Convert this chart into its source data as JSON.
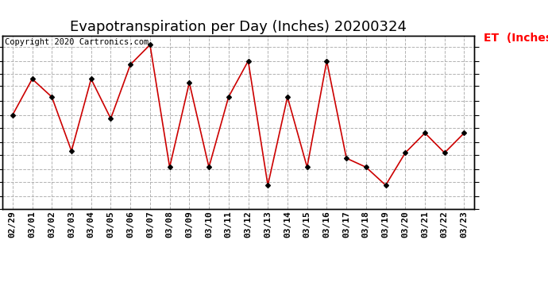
{
  "title": "Evapotranspiration per Day (Inches) 20200324",
  "copyright": "Copyright 2020 Cartronics.com",
  "legend_label": "ET  (Inches)",
  "dates": [
    "02/29",
    "03/01",
    "03/02",
    "03/03",
    "03/04",
    "03/05",
    "03/06",
    "03/07",
    "03/08",
    "03/09",
    "03/10",
    "03/11",
    "03/12",
    "03/13",
    "03/14",
    "03/15",
    "03/16",
    "03/17",
    "03/18",
    "03/19",
    "03/20",
    "03/21",
    "03/22",
    "03/23"
  ],
  "values": [
    0.052,
    0.072,
    0.062,
    0.032,
    0.072,
    0.05,
    0.08,
    0.091,
    0.023,
    0.07,
    0.023,
    0.062,
    0.082,
    0.013,
    0.062,
    0.023,
    0.082,
    0.028,
    0.023,
    0.013,
    0.031,
    0.042,
    0.031,
    0.042
  ],
  "line_color": "#cc0000",
  "marker": "D",
  "marker_color": "black",
  "marker_size": 3,
  "ylim": [
    0.0,
    0.096
  ],
  "yticks": [
    0.0,
    0.007,
    0.015,
    0.022,
    0.03,
    0.037,
    0.045,
    0.052,
    0.06,
    0.068,
    0.075,
    0.082,
    0.09
  ],
  "background_color": "#ffffff",
  "grid_color": "#aaaaaa",
  "title_fontsize": 13,
  "copyright_fontsize": 7.5,
  "legend_fontsize": 10,
  "tick_fontsize": 8,
  "ytick_fontsize": 9
}
